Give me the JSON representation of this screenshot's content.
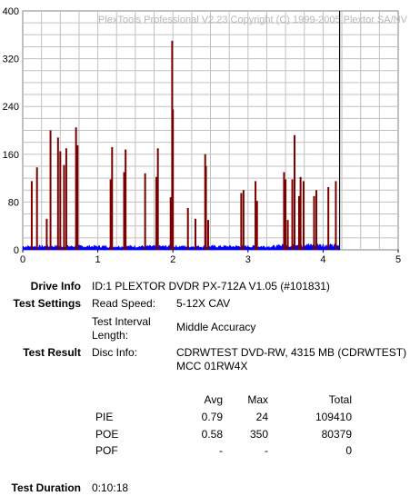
{
  "chart_data": {
    "type": "bar",
    "watermark": "PlexTools Professional V2.23 Copyright (C) 1999-2005 Plextor SA/NV",
    "y_ticks": [
      "400",
      "320",
      "240",
      "160",
      "80",
      "0"
    ],
    "x_ticks": [
      "0",
      "1",
      "2",
      "3",
      "4",
      "5"
    ],
    "xlim": [
      0,
      5
    ],
    "ylim": [
      0,
      400
    ],
    "end_marker_x": 4.22,
    "colors": {
      "poe": "#7a0000",
      "pie": "#0000ff",
      "end_marker": "#000000",
      "grid": "#c0c0c0"
    },
    "series": [
      {
        "values_x": [
          0.12,
          0.19,
          0.32,
          0.37,
          0.47,
          0.5,
          0.55,
          0.58,
          0.71,
          0.73,
          1.17,
          1.19,
          1.35,
          1.37,
          1.63,
          1.78,
          1.8,
          1.97,
          1.99,
          2.0,
          2.2,
          2.3,
          2.43,
          2.44,
          2.47,
          2.91,
          2.94,
          3.1,
          3.12,
          3.48,
          3.5,
          3.53,
          3.59,
          3.62,
          3.68,
          3.7,
          3.74,
          3.88,
          3.91,
          4.07,
          4.17
        ],
        "values_y": [
          115,
          138,
          52,
          200,
          188,
          165,
          142,
          170,
          205,
          175,
          118,
          172,
          130,
          168,
          128,
          122,
          170,
          88,
          350,
          235,
          70,
          52,
          160,
          140,
          50,
          95,
          100,
          115,
          82,
          130,
          118,
          50,
          118,
          192,
          90,
          122,
          115,
          90,
          100,
          105,
          115
        ]
      }
    ]
  },
  "info": {
    "drive_info_label": "Drive Info",
    "drive_info_value": "ID:1 PLEXTOR DVDR PX-712A V1.05 (#101831)",
    "test_settings_label": "Test Settings",
    "read_speed_label": "Read Speed:",
    "read_speed_value": "5-12X CAV",
    "interval_label_1": "Test Interval",
    "interval_label_2": "Length:",
    "interval_value": "Middle Accuracy",
    "test_result_label": "Test Result",
    "disc_info_label": "Disc Info:",
    "disc_info_value_1": "CDRWTEST DVD-RW, 4315 MB (CDRWTEST)",
    "disc_info_value_2": "MCC 01RW4X",
    "test_duration_label": "Test Duration",
    "test_duration_value": "0:10:18"
  },
  "results": {
    "headers": {
      "avg": "Avg",
      "max": "Max",
      "total": "Total"
    },
    "rows": [
      {
        "name": "PIE",
        "avg": "0.79",
        "max": "24",
        "total": "109410"
      },
      {
        "name": "POE",
        "avg": "0.58",
        "max": "350",
        "total": "80379"
      },
      {
        "name": "POF",
        "avg": "-",
        "max": "-",
        "total": "0"
      }
    ]
  }
}
